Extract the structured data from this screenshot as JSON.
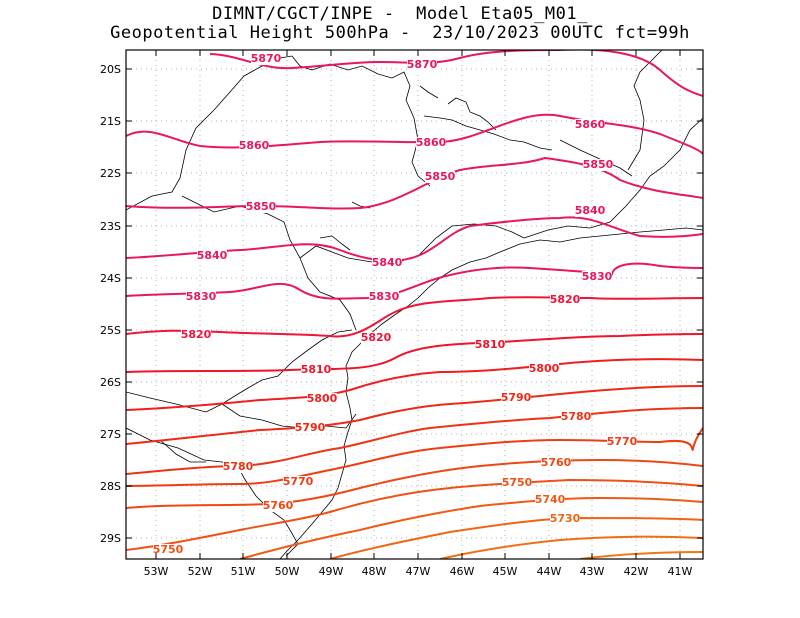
{
  "title": {
    "line1": "DIMNT/CGCT/INPE -  Model Eta05_M01_",
    "line2": "Geopotential Height 500hPa -  23/10/2023 00UTC fct=99h"
  },
  "lat_ticks": [
    "20S",
    "21S",
    "22S",
    "23S",
    "24S",
    "25S",
    "26S",
    "27S",
    "28S",
    "29S"
  ],
  "lon_ticks": [
    "53W",
    "52W",
    "51W",
    "50W",
    "49W",
    "48W",
    "47W",
    "46W",
    "45W",
    "44W",
    "43W",
    "42W",
    "41W"
  ],
  "contour_labels": [
    {
      "text": "5870",
      "color": "#e8185a"
    },
    {
      "text": "5870",
      "color": "#e8185a"
    },
    {
      "text": "5860",
      "color": "#e8185a"
    },
    {
      "text": "5860",
      "color": "#e8185a"
    },
    {
      "text": "5860",
      "color": "#e8185a"
    },
    {
      "text": "5850",
      "color": "#e8185a"
    },
    {
      "text": "5850",
      "color": "#e8185a"
    },
    {
      "text": "5850",
      "color": "#e8185a"
    },
    {
      "text": "5840",
      "color": "#e8185a"
    },
    {
      "text": "5840",
      "color": "#e8185a"
    },
    {
      "text": "5840",
      "color": "#e8185a"
    },
    {
      "text": "5830",
      "color": "#e8185a"
    },
    {
      "text": "5830",
      "color": "#e8185a"
    },
    {
      "text": "5830",
      "color": "#e8185a"
    },
    {
      "text": "5820",
      "color": "#f01438"
    },
    {
      "text": "5820",
      "color": "#f01438"
    },
    {
      "text": "5820",
      "color": "#f01438"
    },
    {
      "text": "5810",
      "color": "#f01428"
    },
    {
      "text": "5810",
      "color": "#f01428"
    },
    {
      "text": "5800",
      "color": "#f01e1e"
    },
    {
      "text": "5800",
      "color": "#f01e1e"
    },
    {
      "text": "5790",
      "color": "#f02814"
    },
    {
      "text": "5790",
      "color": "#f02814"
    },
    {
      "text": "5780",
      "color": "#f03214"
    },
    {
      "text": "5780",
      "color": "#f03214"
    },
    {
      "text": "5770",
      "color": "#f03c14"
    },
    {
      "text": "5770",
      "color": "#f03c14"
    },
    {
      "text": "5760",
      "color": "#f04614"
    },
    {
      "text": "5760",
      "color": "#f04614"
    },
    {
      "text": "5750",
      "color": "#f05014"
    },
    {
      "text": "5750",
      "color": "#f05014"
    },
    {
      "text": "5740",
      "color": "#f05a14"
    },
    {
      "text": "5730",
      "color": "#f06414"
    }
  ]
}
